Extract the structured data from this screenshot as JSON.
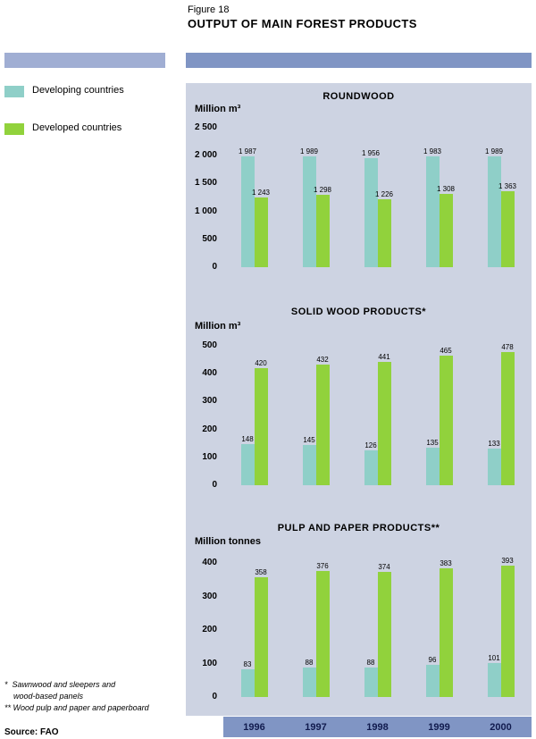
{
  "header": {
    "figure_label": "Figure 18",
    "title": "OUTPUT OF MAIN FOREST PRODUCTS"
  },
  "legend": {
    "items": [
      {
        "label": "Developing countries",
        "color_key": "developing"
      },
      {
        "label": "Developed countries",
        "color_key": "developed"
      }
    ]
  },
  "colors": {
    "developing": "#8FCFC8",
    "developed": "#91D23C",
    "panel_bg": "#CDD3E2",
    "band_left": "#A0AED3",
    "band_right": "#8095C4",
    "year_band": "#8095C4",
    "year_text": "#111B4E"
  },
  "chart_data": [
    {
      "type": "bar",
      "title": "ROUNDWOOD",
      "ylabel": "Million m³",
      "categories": [
        "1996",
        "1997",
        "1998",
        "1999",
        "2000"
      ],
      "series": [
        {
          "name": "Developing countries",
          "color_key": "developing",
          "values": [
            1987,
            1989,
            1956,
            1983,
            1989
          ],
          "labels": [
            "1 987",
            "1 989",
            "1 956",
            "1 983",
            "1 989"
          ]
        },
        {
          "name": "Developed countries",
          "color_key": "developed",
          "values": [
            1243,
            1298,
            1226,
            1308,
            1363
          ],
          "labels": [
            "1 243",
            "1 298",
            "1 226",
            "1 308",
            "1 363"
          ]
        }
      ],
      "ylim": [
        0,
        2500
      ],
      "ytick_step": 500,
      "grid": false,
      "legend_position": "left"
    },
    {
      "type": "bar",
      "title": "SOLID WOOD PRODUCTS*",
      "ylabel": "Million m³",
      "categories": [
        "1996",
        "1997",
        "1998",
        "1999",
        "2000"
      ],
      "series": [
        {
          "name": "Developing countries",
          "color_key": "developing",
          "values": [
            148,
            145,
            126,
            135,
            133
          ],
          "labels": [
            "148",
            "145",
            "126",
            "135",
            "133"
          ]
        },
        {
          "name": "Developed countries",
          "color_key": "developed",
          "values": [
            420,
            432,
            441,
            465,
            478
          ],
          "labels": [
            "420",
            "432",
            "441",
            "465",
            "478"
          ]
        }
      ],
      "ylim": [
        0,
        500
      ],
      "ytick_step": 100,
      "grid": false,
      "legend_position": "left"
    },
    {
      "type": "bar",
      "title": "PULP AND PAPER PRODUCTS**",
      "ylabel": "Million tonnes",
      "categories": [
        "1996",
        "1997",
        "1998",
        "1999",
        "2000"
      ],
      "series": [
        {
          "name": "Developing countries",
          "color_key": "developing",
          "values": [
            83,
            88,
            88,
            96,
            101
          ],
          "labels": [
            "83",
            "88",
            "88",
            "96",
            "101"
          ]
        },
        {
          "name": "Developed countries",
          "color_key": "developed",
          "values": [
            358,
            376,
            374,
            383,
            393
          ],
          "labels": [
            "358",
            "376",
            "374",
            "383",
            "393"
          ]
        }
      ],
      "ylim": [
        0,
        400
      ],
      "ytick_step": 100,
      "grid": false,
      "legend_position": "left"
    }
  ],
  "footnotes": [
    "*  Sawnwood and sleepers and",
    "    wood-based panels",
    "** Wood pulp and paper and paperboard"
  ],
  "source": "Source: FAO"
}
